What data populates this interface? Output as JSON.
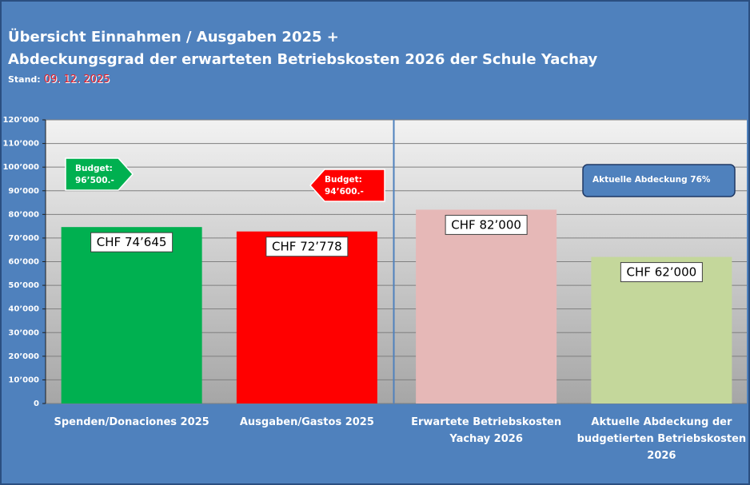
{
  "header": {
    "title_line1": "Übersicht Einnahmen / Ausgaben 2025 +",
    "title_line2": "Abdeckungsgrad der erwarteten Betriebskosten 2026 der Schule Yachay",
    "stand_label": "Stand:",
    "stand_date": "09. 12. 2025"
  },
  "chart_data": {
    "type": "bar",
    "categories": [
      [
        "Spenden/Donaciones 2025"
      ],
      [
        "Ausgaben/Gastos 2025"
      ],
      [
        "Erwartete Betriebskosten",
        "Yachay 2026"
      ],
      [
        "Aktuelle Abdeckung der",
        "budgetierten Betriebskosten",
        "2026"
      ]
    ],
    "values": [
      74645,
      72778,
      82000,
      62000
    ],
    "data_labels": [
      "CHF 74’645",
      "CHF 72’778",
      "CHF 82’000",
      "CHF 62’000"
    ],
    "colors": [
      "#00b050",
      "#ff0000",
      "#e6b8b7",
      "#c4d79b"
    ],
    "ylim": [
      0,
      120000
    ],
    "yticks": [
      0,
      10000,
      20000,
      30000,
      40000,
      50000,
      60000,
      70000,
      80000,
      90000,
      100000,
      110000,
      120000
    ],
    "ytick_labels": [
      "0",
      "10’000",
      "20’000",
      "30’000",
      "40’000",
      "50’000",
      "60’000",
      "70’000",
      "80’000",
      "90’000",
      "100’000",
      "110’000",
      "120’000"
    ],
    "grid": true,
    "annotations": [
      {
        "lines": [
          "Budget:",
          "96’500.-"
        ],
        "color": "#00b050"
      },
      {
        "lines": [
          "Budget:",
          "94’600.-"
        ],
        "color": "#ff0000"
      },
      {
        "lines": [
          "Aktuelle Abdeckung 76%"
        ],
        "color": "#4f81bd"
      }
    ]
  }
}
